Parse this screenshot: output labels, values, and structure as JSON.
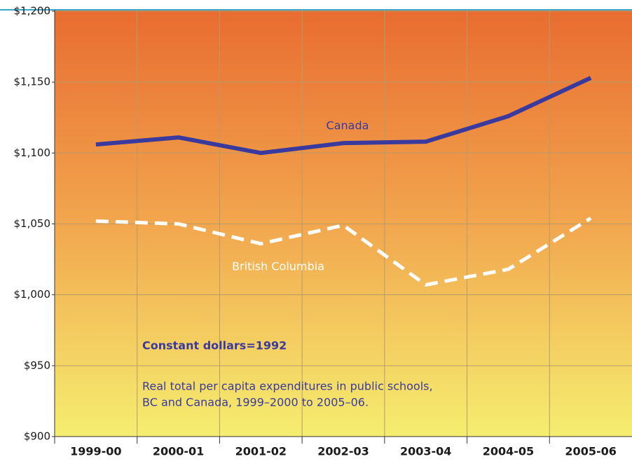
{
  "chart_data": {
    "type": "line",
    "categories": [
      "1999-00",
      "2000-01",
      "2001-02",
      "2002-03",
      "2003-04",
      "2004-05",
      "2005-06"
    ],
    "series": [
      {
        "name": "Canada",
        "color": "#3a3a9e",
        "dashed": false,
        "values": [
          1106,
          1111,
          1100,
          1107,
          1108,
          1126,
          1153
        ]
      },
      {
        "name": "British Columbia",
        "color": "#ffffff",
        "dashed": true,
        "values": [
          1052,
          1050,
          1036,
          1049,
          1007,
          1018,
          1054
        ]
      }
    ],
    "ylim": [
      900,
      1200
    ],
    "yticks": [
      {
        "value": 900,
        "label": "$900"
      },
      {
        "value": 950,
        "label": "$950"
      },
      {
        "value": 1000,
        "label": "$1,000"
      },
      {
        "value": 1050,
        "label": "$1,050"
      },
      {
        "value": 1100,
        "label": "$1,100"
      },
      {
        "value": 1150,
        "label": "$1,150"
      },
      {
        "value": 1200,
        "label": "$1,200"
      }
    ],
    "grid": true,
    "subtitle": "Constant dollars=1992",
    "note": [
      "Real total per capita expenditures in public schools,",
      "BC and Canada, 1999–2000 to 2005–06."
    ]
  }
}
